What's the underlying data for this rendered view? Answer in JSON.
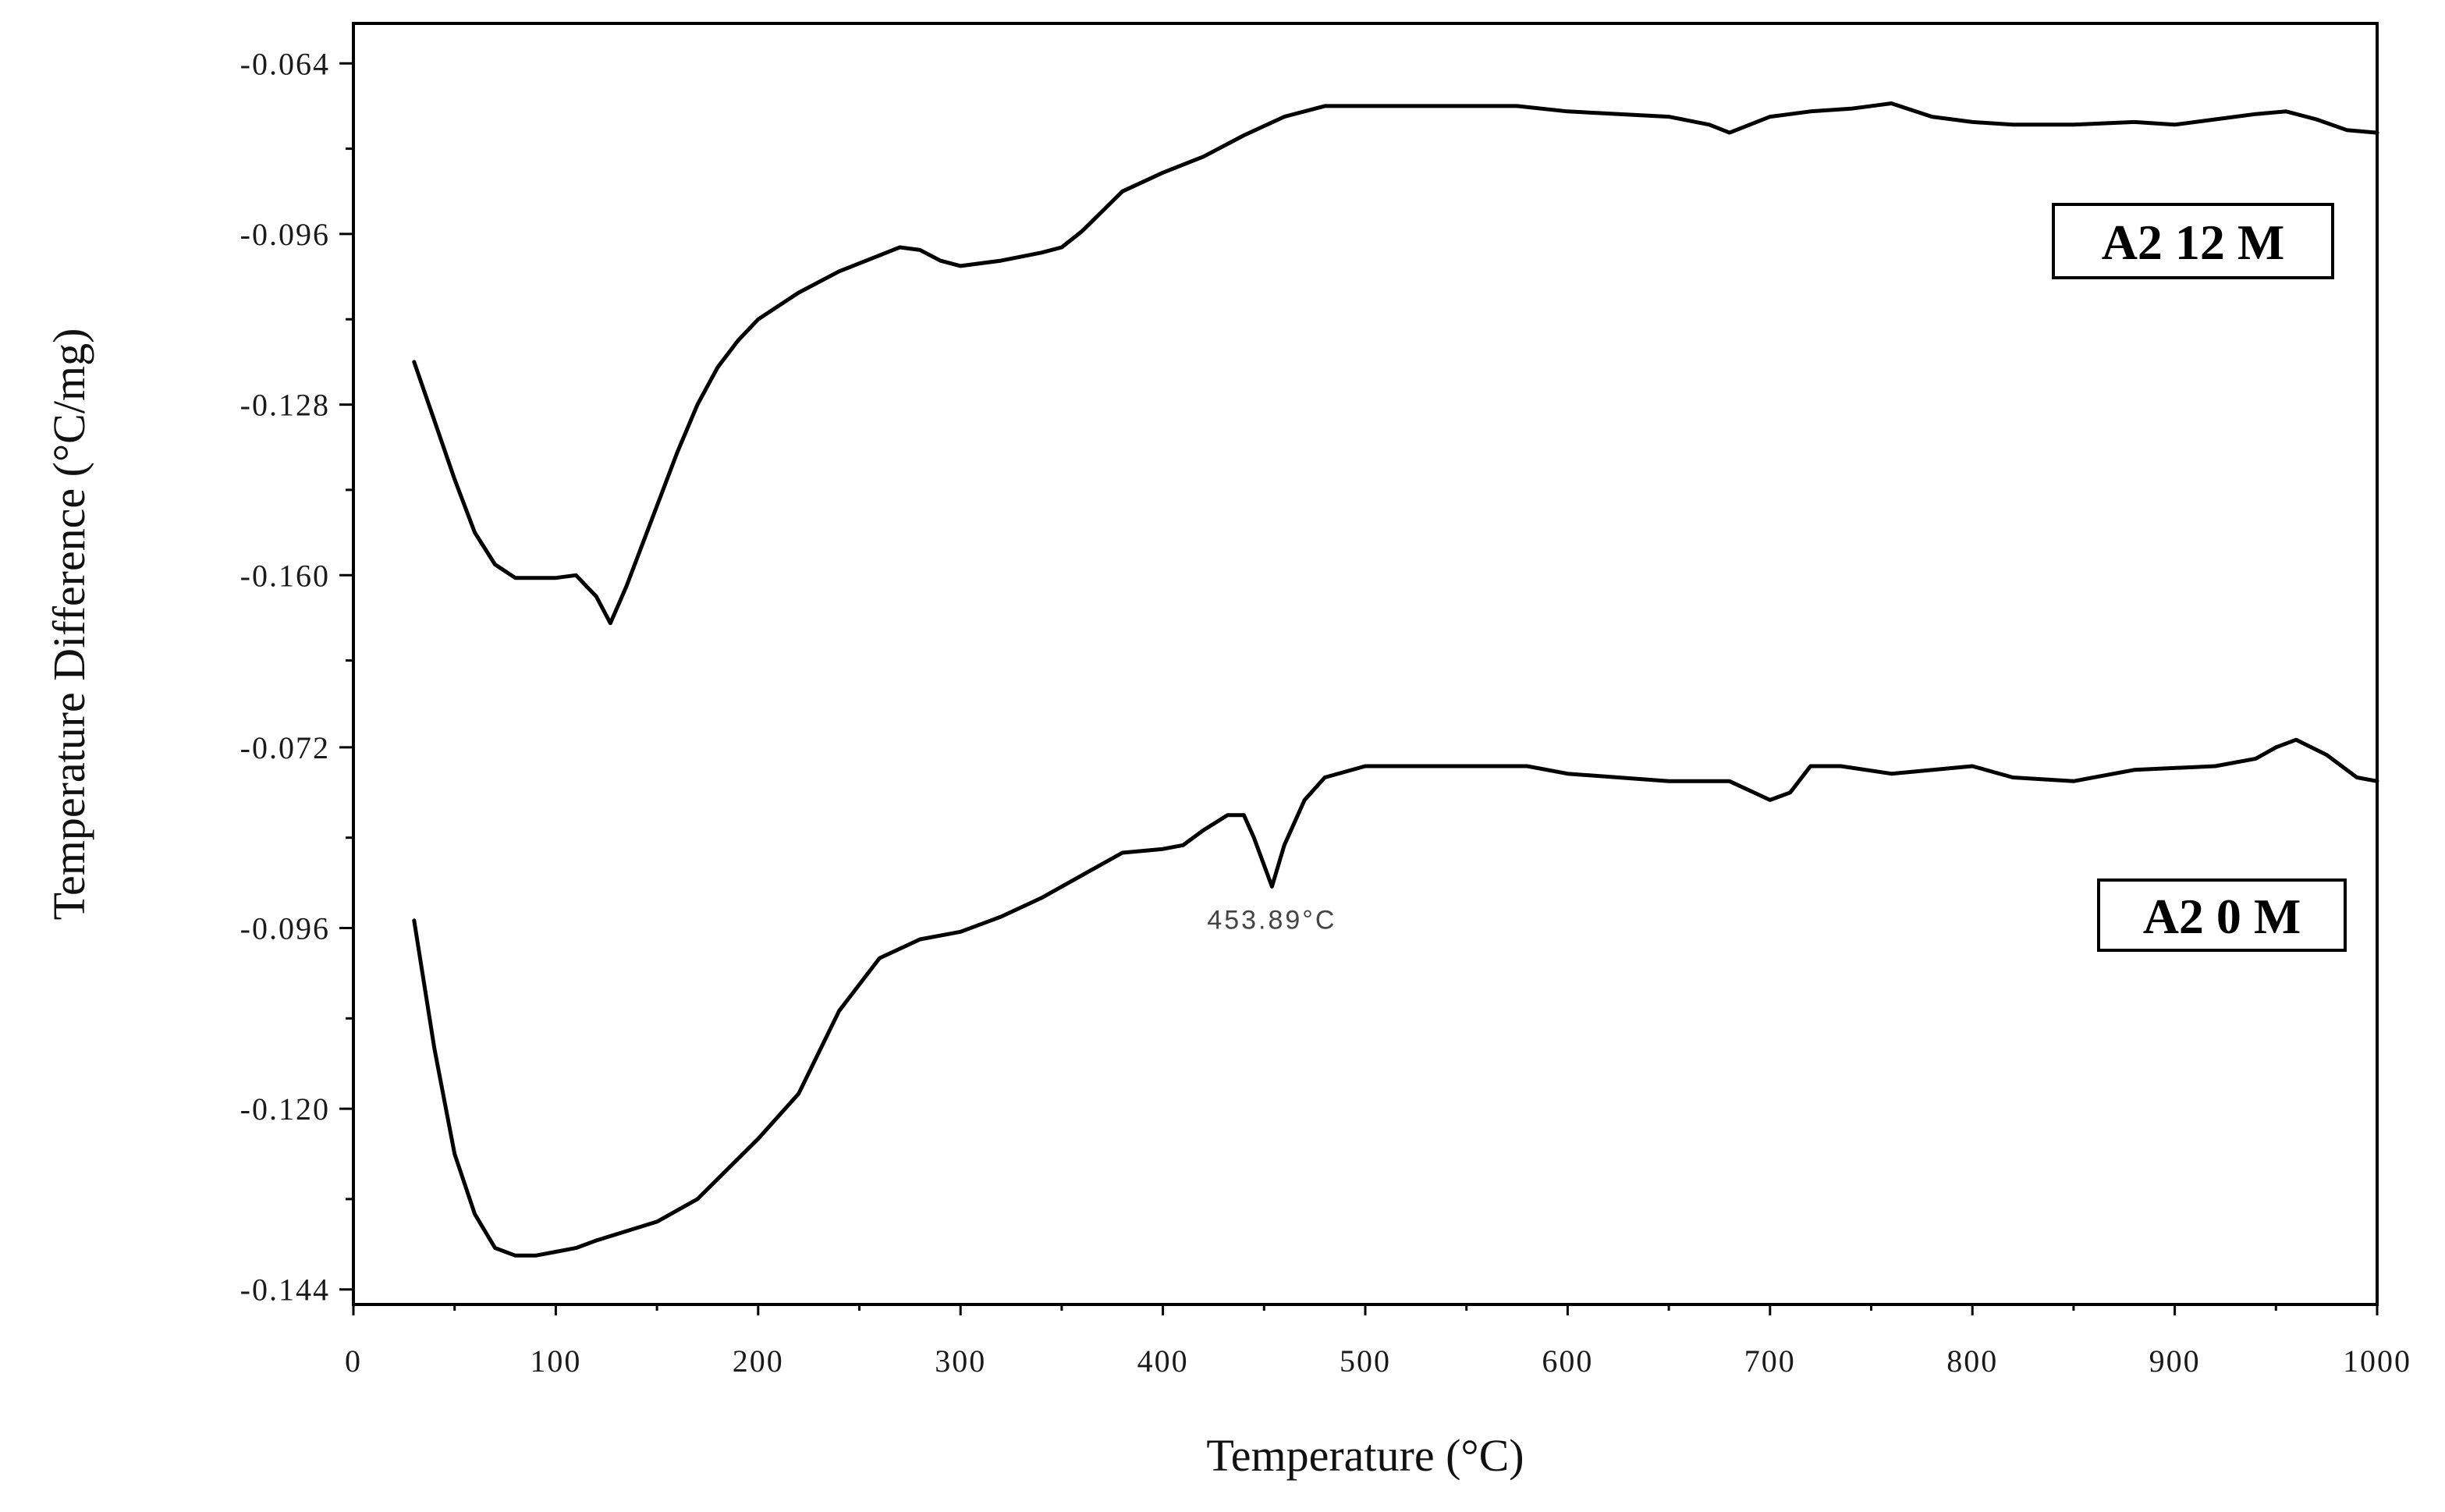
{
  "chart_data": {
    "type": "line",
    "xlabel": "Temperature (°C)",
    "ylabel": "Temperature Difference (°C/mg)",
    "xlim": [
      0,
      1000
    ],
    "x_ticks": [
      0,
      100,
      200,
      300,
      400,
      500,
      600,
      700,
      800,
      900,
      1000
    ],
    "grid": false,
    "panels": [
      {
        "ylim": [
          -0.1765,
          -0.0565
        ],
        "y_ticks": [
          "-0.064",
          "-0.096",
          "-0.128",
          "-0.160"
        ],
        "y_tick_values": [
          -0.064,
          -0.096,
          -0.128,
          -0.16
        ],
        "y_minor_ticks": [
          -0.08,
          -0.112,
          -0.144,
          -0.176
        ],
        "series": [
          {
            "name": "A2 12 M",
            "x": [
              30,
              40,
              50,
              60,
              70,
              80,
              90,
              100,
              110,
              120,
              127,
              135,
              150,
              160,
              170,
              180,
              190,
              200,
              220,
              240,
              260,
              270,
              280,
              290,
              300,
              320,
              340,
              350,
              360,
              380,
              400,
              420,
              440,
              460,
              480,
              500,
              550,
              575,
              600,
              650,
              670,
              680,
              690,
              700,
              720,
              740,
              760,
              780,
              800,
              820,
              850,
              880,
              900,
              920,
              940,
              955,
              970,
              985,
              1000
            ],
            "y": [
              -0.12,
              -0.131,
              -0.142,
              -0.152,
              -0.158,
              -0.1605,
              -0.1605,
              -0.1605,
              -0.16,
              -0.164,
              -0.169,
              -0.162,
              -0.147,
              -0.137,
              -0.128,
              -0.121,
              -0.116,
              -0.112,
              -0.107,
              -0.103,
              -0.1,
              -0.0985,
              -0.099,
              -0.101,
              -0.102,
              -0.101,
              -0.0995,
              -0.0985,
              -0.0955,
              -0.088,
              -0.0845,
              -0.0815,
              -0.0775,
              -0.074,
              -0.072,
              -0.072,
              -0.072,
              -0.072,
              -0.073,
              -0.074,
              -0.0755,
              -0.077,
              -0.0755,
              -0.074,
              -0.073,
              -0.0725,
              -0.0715,
              -0.074,
              -0.075,
              -0.0755,
              -0.0755,
              -0.075,
              -0.0755,
              -0.0745,
              -0.0735,
              -0.073,
              -0.0745,
              -0.0765,
              -0.077
            ]
          }
        ]
      },
      {
        "ylim": [
          -0.146,
          -0.066
        ],
        "y_ticks": [
          "-0.072",
          "-0.096",
          "-0.120",
          "-0.144"
        ],
        "y_tick_values": [
          -0.072,
          -0.096,
          -0.12,
          -0.144
        ],
        "y_minor_ticks": [
          -0.084,
          -0.108,
          -0.132
        ],
        "series": [
          {
            "name": "A2 0 M",
            "x": [
              30,
              40,
              50,
              60,
              70,
              80,
              90,
              100,
              110,
              120,
              150,
              170,
              200,
              220,
              240,
              260,
              280,
              300,
              320,
              340,
              360,
              380,
              400,
              410,
              420,
              432,
              440,
              445,
              453.89,
              460,
              470,
              480,
              500,
              520,
              550,
              580,
              600,
              650,
              680,
              700,
              710,
              720,
              735,
              760,
              800,
              820,
              850,
              880,
              920,
              940,
              950,
              960,
              975,
              990,
              1000
            ],
            "y": [
              -0.095,
              -0.112,
              -0.126,
              -0.134,
              -0.1385,
              -0.1395,
              -0.1395,
              -0.139,
              -0.1385,
              -0.1375,
              -0.135,
              -0.132,
              -0.124,
              -0.118,
              -0.107,
              -0.1,
              -0.0975,
              -0.0965,
              -0.0945,
              -0.092,
              -0.089,
              -0.086,
              -0.0855,
              -0.085,
              -0.083,
              -0.081,
              -0.081,
              -0.084,
              -0.0905,
              -0.085,
              -0.079,
              -0.076,
              -0.0745,
              -0.0745,
              -0.0745,
              -0.0745,
              -0.0755,
              -0.0765,
              -0.0765,
              -0.079,
              -0.078,
              -0.0745,
              -0.0745,
              -0.0755,
              -0.0745,
              -0.076,
              -0.0765,
              -0.075,
              -0.0745,
              -0.0735,
              -0.072,
              -0.071,
              -0.073,
              -0.076,
              -0.0765
            ]
          }
        ],
        "annotations": [
          {
            "text": "453.89°C",
            "x": 453.89,
            "y": -0.0905
          }
        ]
      }
    ]
  },
  "style": {
    "line_color": "#000000",
    "axis_color": "#000000",
    "background": "#ffffff"
  }
}
